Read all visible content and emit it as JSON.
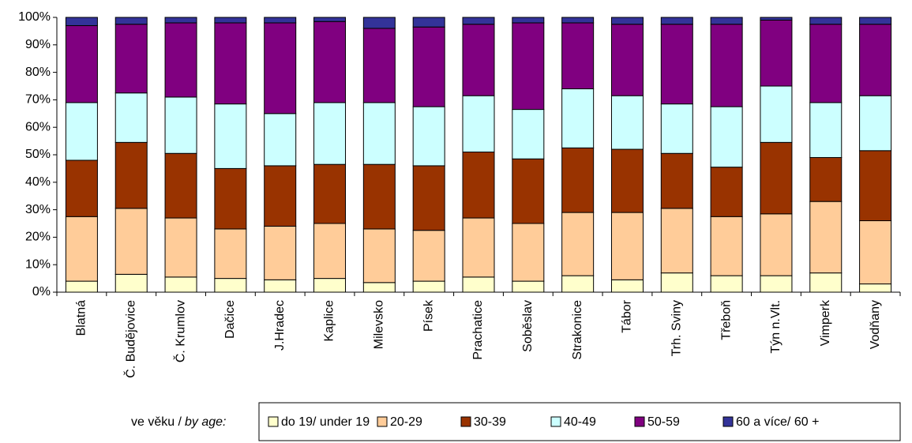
{
  "chart_data": {
    "type": "stacked_bar_100",
    "categories": [
      "Blatná",
      "Č. Budějovice",
      "Č. Krumlov",
      "Dačice",
      "J.Hradec",
      "Kaplice",
      "Milevsko",
      "Písek",
      "Prachatice",
      "Soběslav",
      "Strakonice",
      "Tábor",
      "Trh. Sviny",
      "Třeboň",
      "Týn n.Vlt.",
      "Vimperk",
      "Vodňany"
    ],
    "series": [
      {
        "name": "do 19/ under 19",
        "color": "#ffffcc",
        "values": [
          4,
          6.5,
          5.5,
          5,
          4.5,
          5,
          3.5,
          4,
          5.5,
          4,
          6,
          4.5,
          7,
          6,
          6,
          7,
          3
        ]
      },
      {
        "name": "20-29",
        "color": "#ffcc99",
        "values": [
          23.5,
          24,
          21.5,
          18,
          19.5,
          20,
          19.5,
          18.5,
          21.5,
          21,
          23,
          24.5,
          23.5,
          21.5,
          22.5,
          26,
          23
        ]
      },
      {
        "name": "30-39",
        "color": "#993300",
        "values": [
          20.5,
          24,
          23.5,
          22,
          22,
          21.5,
          23.5,
          23.5,
          24,
          23.5,
          23.5,
          23,
          20,
          18,
          26,
          16,
          25.5
        ]
      },
      {
        "name": "40-49",
        "color": "#ccffff",
        "values": [
          21,
          18,
          20.5,
          23.5,
          19,
          22.5,
          22.5,
          21.5,
          20.5,
          18,
          21.5,
          19.5,
          18,
          22,
          20.5,
          20,
          20
        ]
      },
      {
        "name": "50-59",
        "color": "#800080",
        "values": [
          28,
          25,
          27,
          29.5,
          33,
          29.5,
          27,
          29,
          26,
          31.5,
          24,
          26,
          29,
          30,
          24,
          28.5,
          26
        ]
      },
      {
        "name": "60 a více/ 60 +",
        "color": "#333399",
        "values": [
          3,
          2.5,
          2,
          2,
          2,
          1.5,
          4,
          3.5,
          2.5,
          2,
          2,
          2.5,
          2.5,
          2.5,
          1,
          2.5,
          2.5
        ]
      }
    ],
    "ylim": [
      0,
      100
    ],
    "yticks": [
      {
        "value": 0,
        "label": "0%"
      },
      {
        "value": 10,
        "label": "10%"
      },
      {
        "value": 20,
        "label": "20%"
      },
      {
        "value": 30,
        "label": "30%"
      },
      {
        "value": 40,
        "label": "40%"
      },
      {
        "value": 50,
        "label": "50%"
      },
      {
        "value": 60,
        "label": "60%"
      },
      {
        "value": 70,
        "label": "70%"
      },
      {
        "value": 80,
        "label": "80%"
      },
      {
        "value": 90,
        "label": "90%"
      },
      {
        "value": 100,
        "label": "100%"
      }
    ],
    "legend_title": "ve věku /",
    "legend_title_en": "by age:"
  }
}
